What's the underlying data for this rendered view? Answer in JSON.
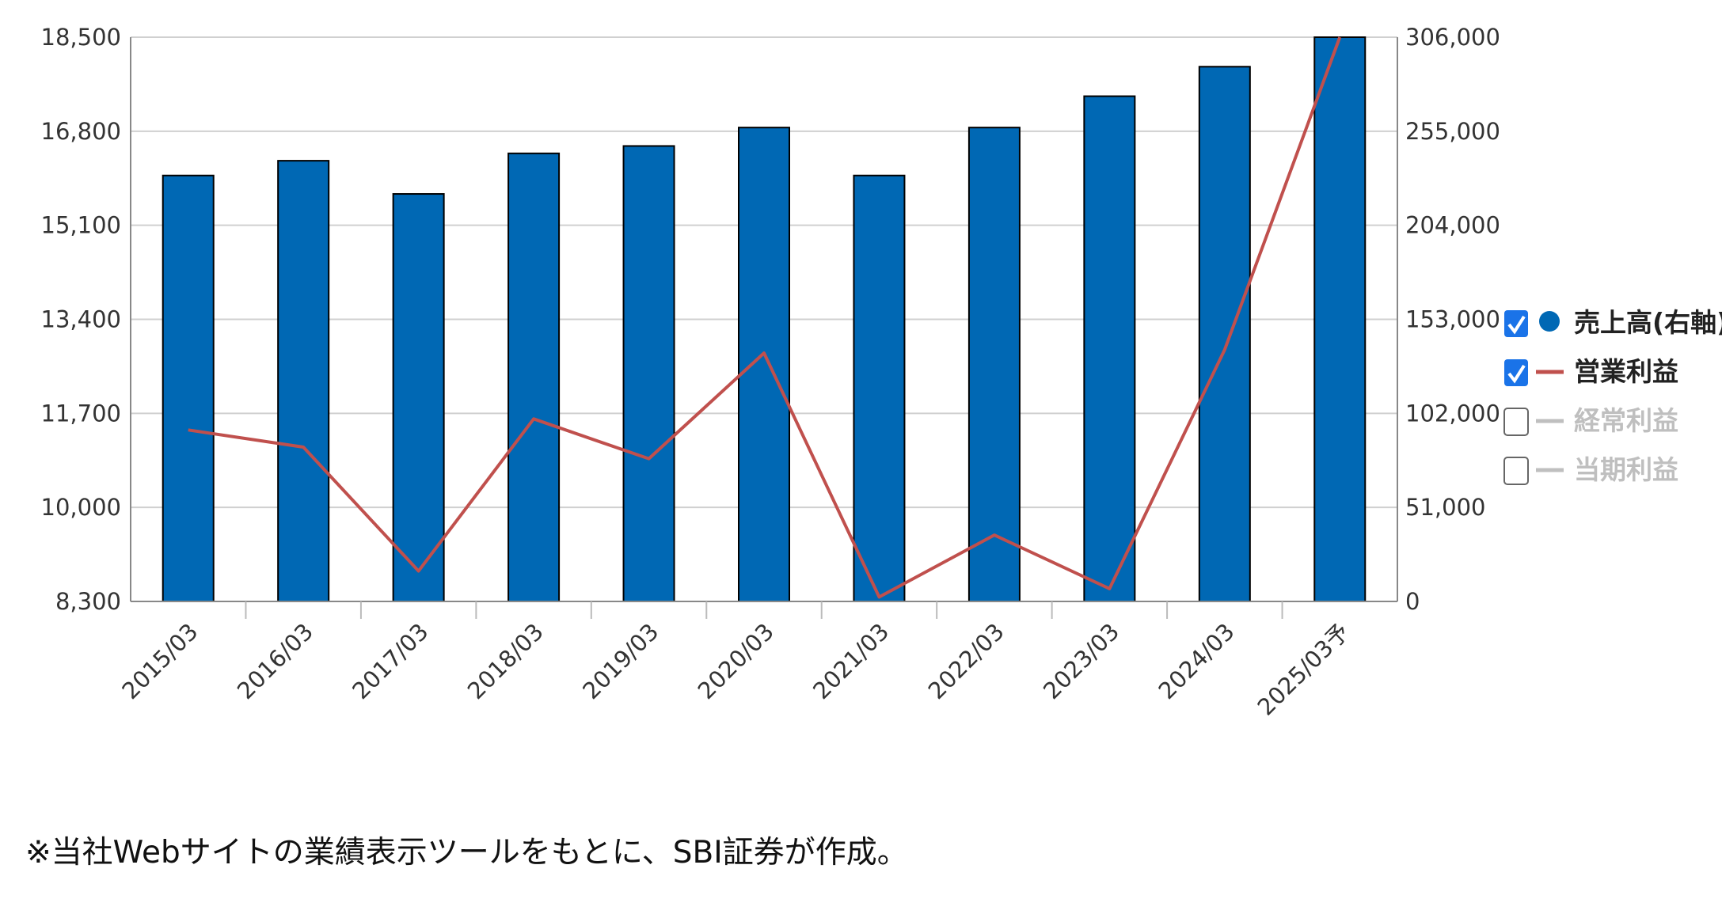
{
  "chart_data": {
    "type": "bar",
    "categories": [
      "2015/03",
      "2016/03",
      "2017/03",
      "2018/03",
      "2019/03",
      "2020/03",
      "2021/03",
      "2022/03",
      "2023/03",
      "2024/03",
      "2025/03予"
    ],
    "series": [
      {
        "name": "売上高(右軸)",
        "type": "bar",
        "axis": "right",
        "values": [
          231000,
          239000,
          221000,
          243000,
          247000,
          257000,
          231000,
          257000,
          274000,
          290000,
          306000
        ]
      },
      {
        "name": "営業利益",
        "type": "line",
        "axis": "left",
        "values": [
          11400,
          11090,
          8850,
          11600,
          10880,
          12790,
          8380,
          9500,
          8530,
          12850,
          18500
        ]
      }
    ],
    "left_axis": {
      "ylim": [
        8300,
        18500
      ],
      "ticks": [
        "8,300",
        "10,000",
        "11,700",
        "13,400",
        "15,100",
        "16,800",
        "18,500"
      ]
    },
    "right_axis": {
      "ylim": [
        0,
        306000
      ],
      "ticks": [
        "0",
        "51,000",
        "102,000",
        "153,000",
        "204,000",
        "255,000",
        "306,000"
      ]
    },
    "grid": true,
    "legend_placement": "right"
  },
  "legend": {
    "items": [
      {
        "label": "売上高(右軸)",
        "checked": true,
        "marker": "circle",
        "color": "#0068B4",
        "enabled": true
      },
      {
        "label": "営業利益",
        "checked": true,
        "marker": "line",
        "color": "#C0504D",
        "enabled": true
      },
      {
        "label": "経常利益",
        "checked": false,
        "marker": "line",
        "color": "#BFBFBF",
        "enabled": false
      },
      {
        "label": "当期利益",
        "checked": false,
        "marker": "line",
        "color": "#BFBFBF",
        "enabled": false
      }
    ]
  },
  "colors": {
    "bar": "#0068B4",
    "bar_stroke": "#000000",
    "line": "#C0504D",
    "grid": "#D0D0D0",
    "checkbox": "#1A73E8",
    "disabled": "#BFBFBF"
  },
  "footnote": "※当社Webサイトの業績表示ツールをもとに、SBI証券が作成。"
}
